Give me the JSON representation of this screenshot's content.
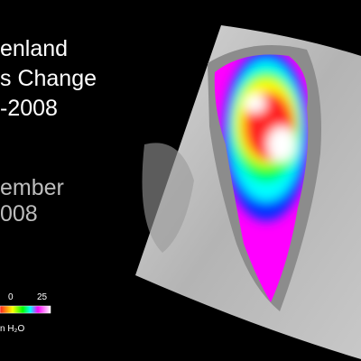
{
  "title_lines": [
    "enland",
    "s Change",
    "-2008"
  ],
  "date_lines": [
    "ember",
    "008"
  ],
  "colorbar": {
    "ticks": [
      "0",
      "25"
    ],
    "unit": "n H₂O"
  }
}
